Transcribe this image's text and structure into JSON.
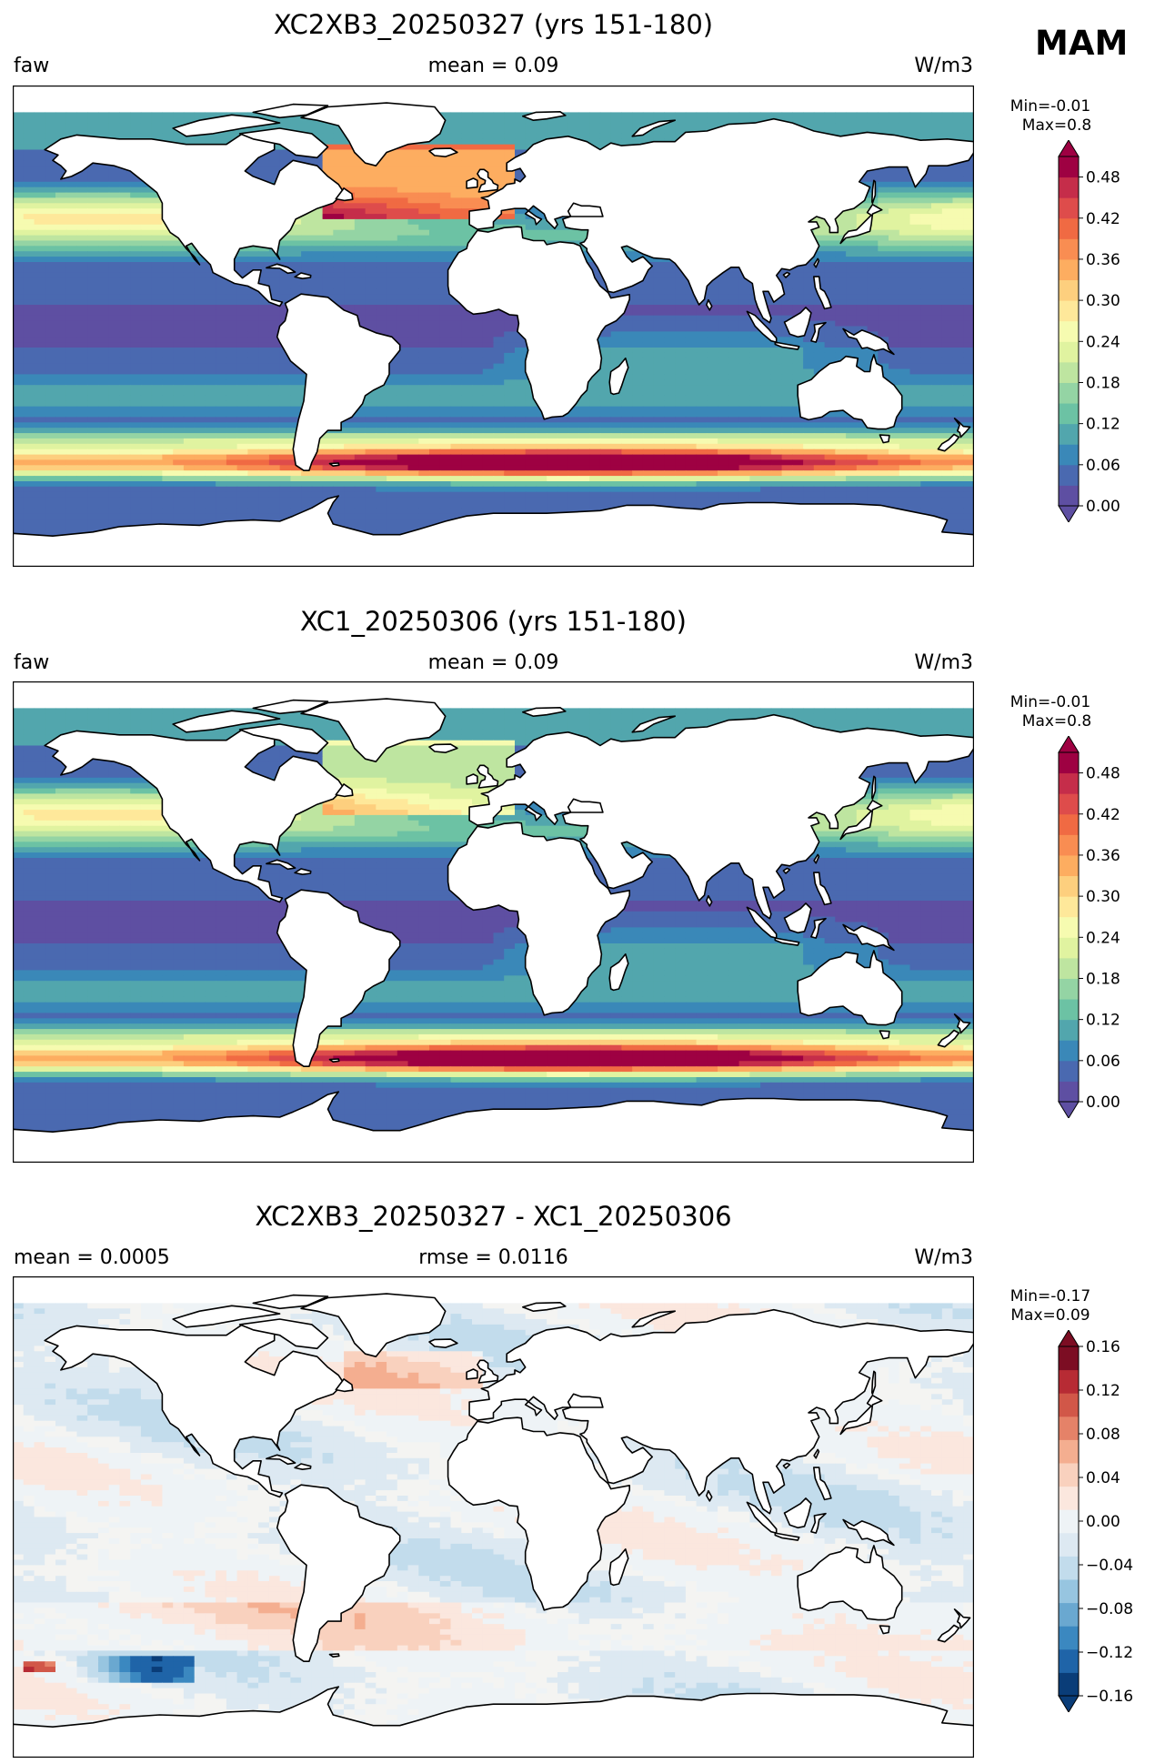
{
  "season": "MAM",
  "panels": [
    {
      "title": "XC2XB3_20250327 (yrs 151-180)",
      "left_label": "faw",
      "center_label": "mean = 0.09",
      "right_label": "W/m3",
      "stat_min": "Min=-0.01",
      "stat_max": "Max=0.8",
      "colormap": "Spectral_r",
      "colorbar": {
        "ticks": [
          "0.00",
          "0.06",
          "0.12",
          "0.18",
          "0.24",
          "0.30",
          "0.36",
          "0.42",
          "0.48"
        ],
        "colors": [
          "#5e4fa2",
          "#4a69b0",
          "#3a88b8",
          "#52a6ad",
          "#6cc2a4",
          "#94d4a4",
          "#bee5a0",
          "#e0f3a0",
          "#f6fbb0",
          "#fee89a",
          "#fdcf7e",
          "#fdad60",
          "#f98d52",
          "#f06a43",
          "#de4c4b",
          "#c52d4a",
          "#9e0142"
        ]
      }
    },
    {
      "title": "XC1_20250306 (yrs 151-180)",
      "left_label": "faw",
      "center_label": "mean = 0.09",
      "right_label": "W/m3",
      "stat_min": "Min=-0.01",
      "stat_max": "Max=0.8",
      "colormap": "Spectral_r",
      "colorbar": {
        "ticks": [
          "0.00",
          "0.06",
          "0.12",
          "0.18",
          "0.24",
          "0.30",
          "0.36",
          "0.42",
          "0.48"
        ],
        "colors": [
          "#5e4fa2",
          "#4a69b0",
          "#3a88b8",
          "#52a6ad",
          "#6cc2a4",
          "#94d4a4",
          "#bee5a0",
          "#e0f3a0",
          "#f6fbb0",
          "#fee89a",
          "#fdcf7e",
          "#fdad60",
          "#f98d52",
          "#f06a43",
          "#de4c4b",
          "#c52d4a",
          "#9e0142"
        ]
      }
    },
    {
      "title": "XC2XB3_20250327 - XC1_20250306",
      "left_label": "mean = 0.0005",
      "center_label": "rmse = 0.0116",
      "right_label": "W/m3",
      "stat_min": "Min=-0.17",
      "stat_max": "Max=0.09",
      "colormap": "RdBu_r",
      "colorbar": {
        "ticks": [
          "−0.16",
          "−0.12",
          "−0.08",
          "−0.04",
          "0.00",
          "0.04",
          "0.08",
          "0.12",
          "0.16"
        ],
        "colors": [
          "#0a3d78",
          "#1f64a8",
          "#3b88c0",
          "#6aa8d0",
          "#97c5e0",
          "#c2dcec",
          "#dde9f2",
          "#eef3f6",
          "#fbe7de",
          "#f9d1be",
          "#f4ae90",
          "#e58268",
          "#d15748",
          "#b72b34",
          "#7c0d23"
        ]
      }
    }
  ]
}
